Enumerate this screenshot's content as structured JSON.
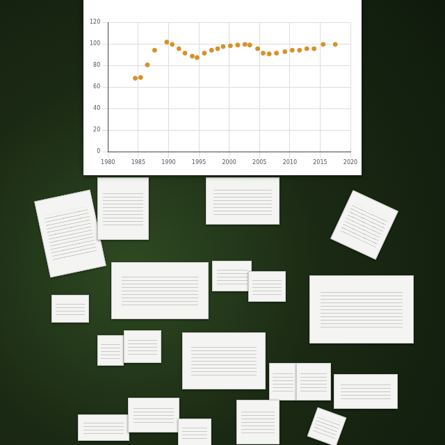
{
  "chart_data": {
    "type": "scatter",
    "x": [
      1984.5,
      1985.4,
      1986.5,
      1987.7,
      1989.7,
      1990.6,
      1991.7,
      1992.7,
      1993.9,
      1994.7,
      1995.9,
      1997.1,
      1998.1,
      1999.0,
      2000.2,
      2001.4,
      2002.6,
      2003.4,
      2004.7,
      2005.6,
      2006.6,
      2007.8,
      2009.2,
      2010.4,
      2011.6,
      2012.8,
      2014.0,
      2015.5,
      2017.5
    ],
    "values": [
      68.2,
      68.9,
      80.5,
      94.1,
      101.6,
      99.5,
      95.5,
      91.4,
      88.6,
      87.3,
      91.4,
      94.1,
      95.5,
      97.5,
      98.2,
      98.9,
      99.5,
      98.9,
      95.5,
      91.4,
      90.7,
      91.4,
      92.8,
      94.1,
      94.1,
      95.5,
      95.5,
      99.5,
      99.5
    ],
    "color": "#d9902a",
    "marker": "circle",
    "xlim": [
      1980,
      2020
    ],
    "xticks": [
      1980,
      1985,
      1990,
      1995,
      2000,
      2005,
      2010,
      2015,
      2020
    ],
    "ylim": [
      0,
      120
    ],
    "yticks": [
      0,
      20,
      40,
      60,
      80,
      100,
      120
    ],
    "grid": true
  }
}
